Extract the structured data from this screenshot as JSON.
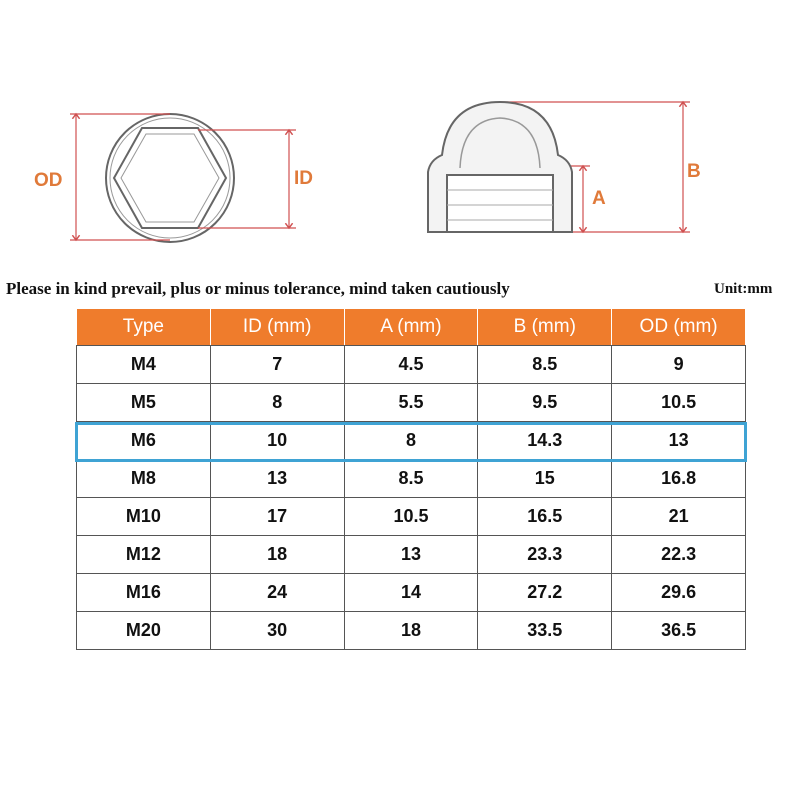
{
  "diagram": {
    "labels": {
      "od": "OD",
      "id": "ID",
      "b": "B",
      "a": "A"
    }
  },
  "note": "Please in kind prevail, plus or minus tolerance, mind taken cautiously",
  "unit": "Unit:mm",
  "table": {
    "header": [
      "Type",
      "ID (mm)",
      "A (mm)",
      "B (mm)",
      "OD (mm)"
    ],
    "rows": [
      [
        "M4",
        "7",
        "4.5",
        "8.5",
        "9"
      ],
      [
        "M5",
        "8",
        "5.5",
        "9.5",
        "10.5"
      ],
      [
        "M6",
        "10",
        "8",
        "14.3",
        "13"
      ],
      [
        "M8",
        "13",
        "8.5",
        "15",
        "16.8"
      ],
      [
        "M10",
        "17",
        "10.5",
        "16.5",
        "21"
      ],
      [
        "M12",
        "18",
        "13",
        "23.3",
        "22.3"
      ],
      [
        "M16",
        "24",
        "14",
        "27.2",
        "29.6"
      ],
      [
        "M20",
        "30",
        "18",
        "33.5",
        "36.5"
      ]
    ]
  }
}
